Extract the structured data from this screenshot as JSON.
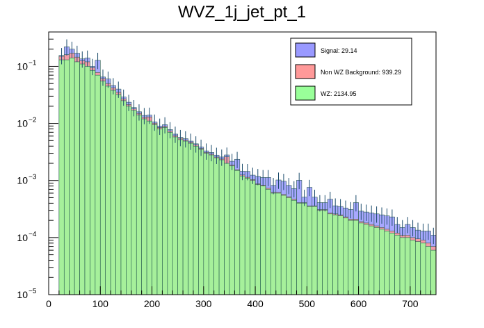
{
  "title": "WVZ_1j_jet_pt_1",
  "legend": {
    "position": "top-right",
    "entries": [
      {
        "label": "Signal: 29.14",
        "color": "#9999ff"
      },
      {
        "label": "Non WZ Background: 939.29",
        "color": "#ff9999"
      },
      {
        "label": "WZ: 2134.95",
        "color": "#99ff99"
      }
    ]
  },
  "chart_data": {
    "type": "histogram",
    "title": "WVZ_1j_jet_pt_1",
    "xlabel": "",
    "ylabel": "",
    "xlim": [
      0,
      750
    ],
    "ylim": [
      1e-05,
      0.4
    ],
    "yscale": "log",
    "bin_width": 10,
    "bin_start": 20,
    "stacked": true,
    "x_ticks": [
      0,
      100,
      200,
      300,
      400,
      500,
      600,
      700
    ],
    "y_ticks": [
      "10^-5",
      "10^-4",
      "10^-3",
      "10^-2",
      "10^-1"
    ],
    "series": [
      {
        "name": "WZ",
        "color": "#99ff99",
        "values": [
          0.13,
          0.13,
          0.14,
          0.12,
          0.11,
          0.1,
          0.085,
          0.07,
          0.055,
          0.045,
          0.038,
          0.032,
          0.025,
          0.02,
          0.017,
          0.014,
          0.012,
          0.011,
          0.0095,
          0.008,
          0.0085,
          0.007,
          0.0058,
          0.0052,
          0.0049,
          0.0045,
          0.004,
          0.0035,
          0.003,
          0.0028,
          0.0025,
          0.0023,
          0.002,
          0.0018,
          0.0015,
          0.0012,
          0.0011,
          0.001,
          0.00085,
          0.0008,
          0.0007,
          0.0006,
          0.0006,
          0.00055,
          0.0005,
          0.00045,
          0.0004,
          0.0004,
          0.00035,
          0.00035,
          0.0003,
          0.0003,
          0.00026,
          0.00025,
          0.00024,
          0.00022,
          0.0002,
          0.0002,
          0.00018,
          0.00017,
          0.00016,
          0.00015,
          0.00014,
          0.00013,
          0.00012,
          0.00011,
          0.0001,
          0.0001,
          9e-05,
          8.5e-05,
          8e-05,
          7e-05,
          6e-05
        ]
      },
      {
        "name": "Non WZ Background",
        "color": "#ff9999",
        "values": [
          0.02,
          0.03,
          0.03,
          0.025,
          0.015,
          0.02,
          0.01,
          0.008,
          0.006,
          0.005,
          0.004,
          0.003,
          0.002,
          0.0015,
          0.001,
          0.001,
          0.0008,
          0.002,
          0.0006,
          0.0005,
          0.0004,
          0.0004,
          0.0003,
          0.0003,
          0.0002,
          0.0002,
          0.0002,
          0.00015,
          0.0001,
          0.0001,
          8e-05,
          8e-05,
          0.0006,
          7e-05,
          5e-05,
          5e-05,
          4e-05,
          4e-05,
          3e-05,
          3e-05,
          3e-05,
          2e-05,
          2e-05,
          2e-05,
          2e-05,
          2e-05,
          1e-05,
          1e-05,
          1e-05,
          1e-05,
          1e-05,
          1e-05,
          1e-05,
          1e-05,
          1e-05,
          1e-05,
          1e-05,
          1e-05,
          1e-05,
          1e-05,
          1e-05,
          1e-05,
          1e-05,
          1e-05,
          1e-05,
          1e-05,
          1e-05,
          1e-05,
          1e-05,
          1e-05,
          1e-05,
          1e-05,
          1e-05
        ]
      },
      {
        "name": "Signal",
        "color": "#9999ff",
        "values": [
          0.005,
          0.06,
          0.03,
          0.025,
          0.01,
          0.02,
          0.005,
          0.05,
          0.004,
          0.01,
          0.004,
          0.005,
          0.002,
          0.002,
          0.001,
          0.001,
          0.001,
          0.001,
          0.0005,
          0.0005,
          0.0006,
          0.0004,
          0.0004,
          0.0002,
          0.0003,
          0.0002,
          0.0002,
          0.0002,
          0.0002,
          0.0002,
          0.0002,
          0.0002,
          0.0002,
          0.0003,
          0.0008,
          0.0002,
          0.0003,
          0.0002,
          0.0003,
          0.0003,
          0.0004,
          0.0002,
          0.0004,
          0.0004,
          0.0003,
          0.00025,
          0.0006,
          0.0001,
          0.0004,
          0.00015,
          0.0001,
          0.0001,
          0.0002,
          0.0001,
          0.0001,
          0.0001,
          0.0001,
          0.0002,
          0.0001,
          0.0001,
          0.0001,
          0.0001,
          0.0001,
          0.0001,
          0.0001,
          5e-05,
          4e-05,
          6e-05,
          5e-05,
          4e-05,
          4e-05,
          5e-05,
          4e-05
        ]
      }
    ]
  }
}
